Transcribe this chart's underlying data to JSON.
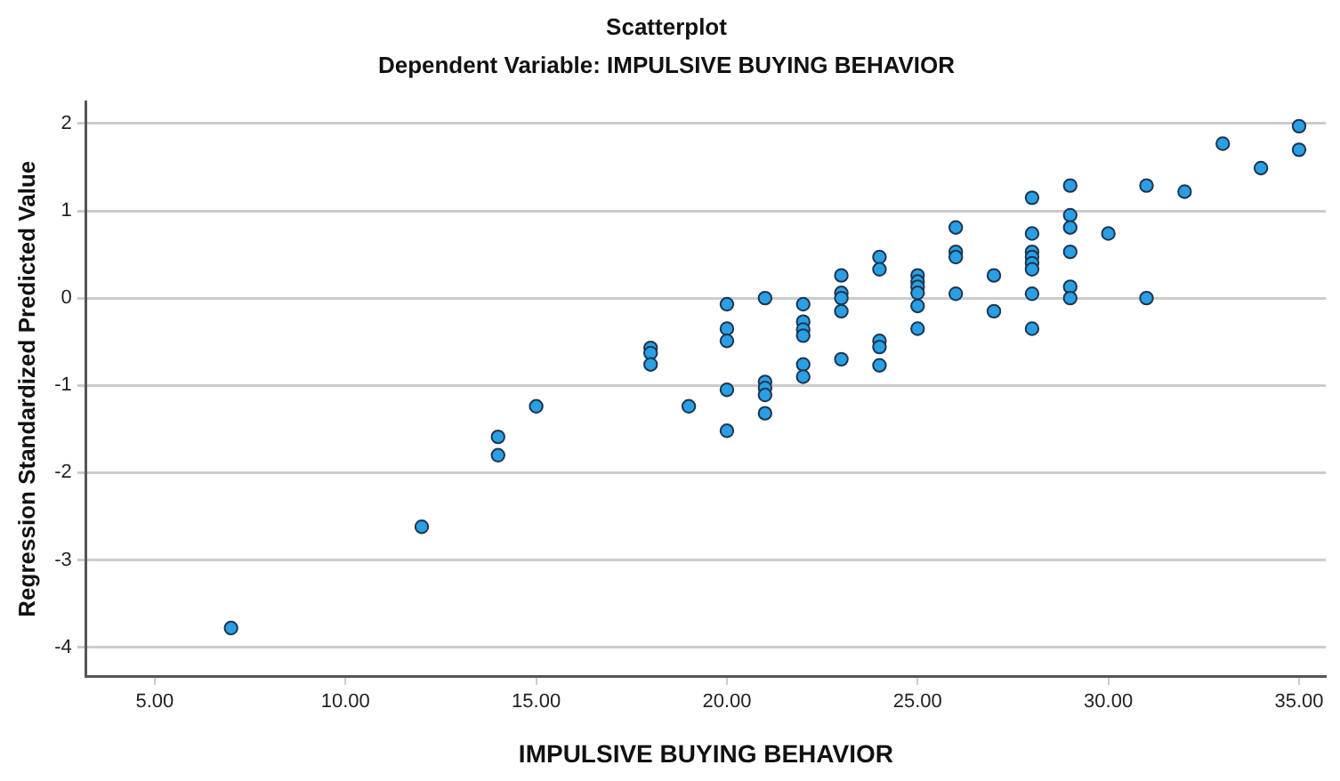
{
  "chart_data": {
    "type": "scatter",
    "title": "Scatterplot",
    "subtitle": "Dependent Variable: IMPULSIVE BUYING BEHAVIOR",
    "xlabel": "IMPULSIVE BUYING BEHAVIOR",
    "ylabel": "Regression Standardized Predicted Value",
    "series": [
      {
        "color": "#2a9fe3",
        "x": [
          7,
          12,
          14,
          14,
          15,
          18,
          18,
          18,
          19,
          20,
          20,
          20,
          20,
          20,
          21,
          21,
          21,
          21,
          21,
          22,
          22,
          22,
          22,
          22,
          22,
          23,
          23,
          23,
          23,
          23,
          24,
          24,
          24,
          24,
          24,
          25,
          25,
          25,
          25,
          25,
          25,
          26,
          26,
          26,
          26,
          27,
          27,
          28,
          28,
          28,
          28,
          28,
          28,
          28,
          28,
          29,
          29,
          29,
          29,
          29,
          29,
          30,
          31,
          31,
          32,
          33,
          34,
          35,
          35
        ],
        "values": [
          -3.78,
          -2.62,
          -1.59,
          -1.8,
          -1.24,
          -0.57,
          -0.63,
          -0.76,
          -1.24,
          -0.07,
          -0.35,
          -0.49,
          -1.05,
          -1.52,
          0,
          -0.96,
          -1.03,
          -1.11,
          -1.32,
          -0.07,
          -0.27,
          -0.36,
          -0.43,
          -0.76,
          -0.9,
          0.26,
          0.06,
          0,
          -0.15,
          -0.7,
          0.47,
          0.33,
          -0.49,
          -0.56,
          -0.77,
          0.26,
          0.19,
          0.13,
          0.06,
          -0.09,
          -0.35,
          0.81,
          0.53,
          0.47,
          0.05,
          0.26,
          -0.15,
          1.15,
          0.74,
          0.53,
          0.47,
          0.4,
          0.33,
          0.05,
          -0.35,
          1.29,
          0.95,
          0.81,
          0.53,
          0.13,
          0,
          0.74,
          1.29,
          0,
          1.22,
          1.77,
          1.49,
          1.97,
          1.7
        ]
      }
    ],
    "xlim": [
      3.2,
      35.7
    ],
    "ylim": [
      -4.33,
      2.25
    ],
    "xticks": [
      {
        "value": 5,
        "label": "5.00"
      },
      {
        "value": 10,
        "label": "10.00"
      },
      {
        "value": 15,
        "label": "15.00"
      },
      {
        "value": 20,
        "label": "20.00"
      },
      {
        "value": 25,
        "label": "25.00"
      },
      {
        "value": 30,
        "label": "30.00"
      },
      {
        "value": 35,
        "label": "35.00"
      }
    ],
    "yticks": [
      -4,
      -3,
      -2,
      -1,
      0,
      1,
      2
    ],
    "grid": "y",
    "legend": false,
    "marker": "circle"
  }
}
